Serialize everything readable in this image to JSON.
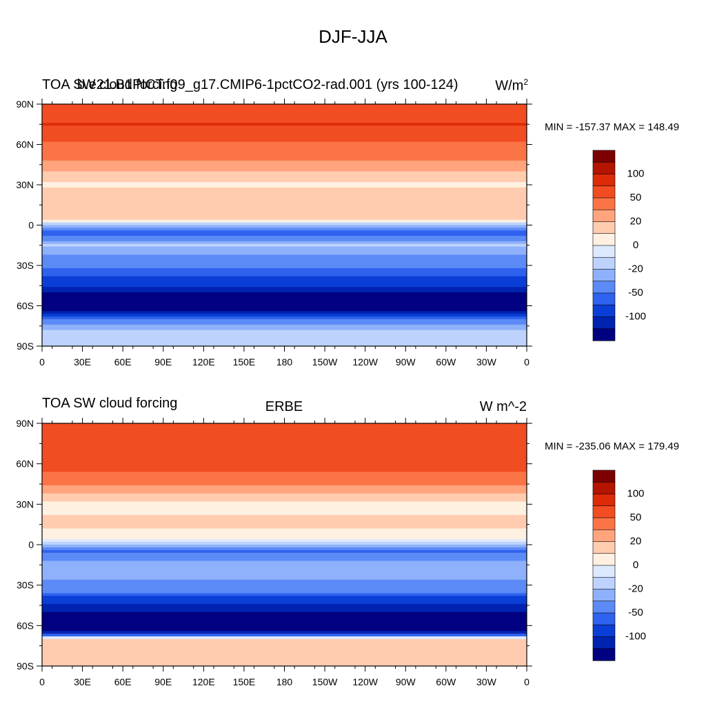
{
  "title": "DJF-JJA",
  "colorbar": {
    "colors": [
      "#000080",
      "#0022b0",
      "#0a3ed6",
      "#2f62ee",
      "#5c8af7",
      "#8fb1fb",
      "#bdd3fd",
      "#ddeafe",
      "#fff1e2",
      "#ffccb0",
      "#ffa47c",
      "#fb7446",
      "#f24d22",
      "#dd2b07",
      "#b41500",
      "#7d0000"
    ],
    "labels": [
      "100",
      "50",
      "20",
      "0",
      "-20",
      "-50",
      "-100"
    ]
  },
  "chart_data": [
    {
      "type": "heatmap",
      "left_title_a": "TOA SW cloud forcing",
      "left_title_b": "b.e21.B1PICT.f09_g17.CMIP6-1pctCO2-rad.001 (yrs 100-124)",
      "units_base": "W/m",
      "units_exp": "2",
      "min_max": "MIN = -157.37 MAX = 148.49",
      "lat_ticks": [
        "90N",
        "60N",
        "30N",
        "0",
        "30S",
        "60S",
        "90S"
      ],
      "lon_ticks": [
        "0",
        "30E",
        "60E",
        "90E",
        "120E",
        "150E",
        "180",
        "150W",
        "120W",
        "90W",
        "60W",
        "30W",
        "0"
      ],
      "zonal_profile": [
        {
          "lat": 90,
          "value": 95
        },
        {
          "lat": 75,
          "value": 100
        },
        {
          "lat": 60,
          "value": 70
        },
        {
          "lat": 45,
          "value": 45
        },
        {
          "lat": 30,
          "value": 18
        },
        {
          "lat": 15,
          "value": 30
        },
        {
          "lat": 5,
          "value": 25
        },
        {
          "lat": -5,
          "value": -45
        },
        {
          "lat": -15,
          "value": -10
        },
        {
          "lat": -25,
          "value": -25
        },
        {
          "lat": -35,
          "value": -40
        },
        {
          "lat": -45,
          "value": -75
        },
        {
          "lat": -55,
          "value": -120
        },
        {
          "lat": -62,
          "value": -135
        },
        {
          "lat": -70,
          "value": -30
        },
        {
          "lat": -80,
          "value": -5
        },
        {
          "lat": -90,
          "value": -5
        }
      ]
    },
    {
      "type": "heatmap",
      "left_title": "TOA SW cloud forcing",
      "center_title": "ERBE",
      "right_title": "W m^-2",
      "min_max": "MIN = -235.06 MAX = 179.49",
      "lat_ticks": [
        "90N",
        "60N",
        "30N",
        "0",
        "30S",
        "60S",
        "90S"
      ],
      "lon_ticks": [
        "0",
        "30E",
        "60E",
        "90E",
        "120E",
        "150E",
        "180",
        "150W",
        "120W",
        "90W",
        "60W",
        "30W",
        "0"
      ],
      "zonal_profile": [
        {
          "lat": 85,
          "value": 90
        },
        {
          "lat": 75,
          "value": 95
        },
        {
          "lat": 60,
          "value": 85
        },
        {
          "lat": 45,
          "value": 55
        },
        {
          "lat": 30,
          "value": 15
        },
        {
          "lat": 15,
          "value": 25
        },
        {
          "lat": 5,
          "value": 10
        },
        {
          "lat": -5,
          "value": -40
        },
        {
          "lat": -15,
          "value": -15
        },
        {
          "lat": -25,
          "value": -20
        },
        {
          "lat": -35,
          "value": -35
        },
        {
          "lat": -45,
          "value": -80
        },
        {
          "lat": -55,
          "value": -130
        },
        {
          "lat": -63,
          "value": -150
        },
        {
          "lat": -70,
          "value": 30
        },
        {
          "lat": -80,
          "value": 25
        },
        {
          "lat": -85,
          "value": 20
        }
      ]
    }
  ]
}
